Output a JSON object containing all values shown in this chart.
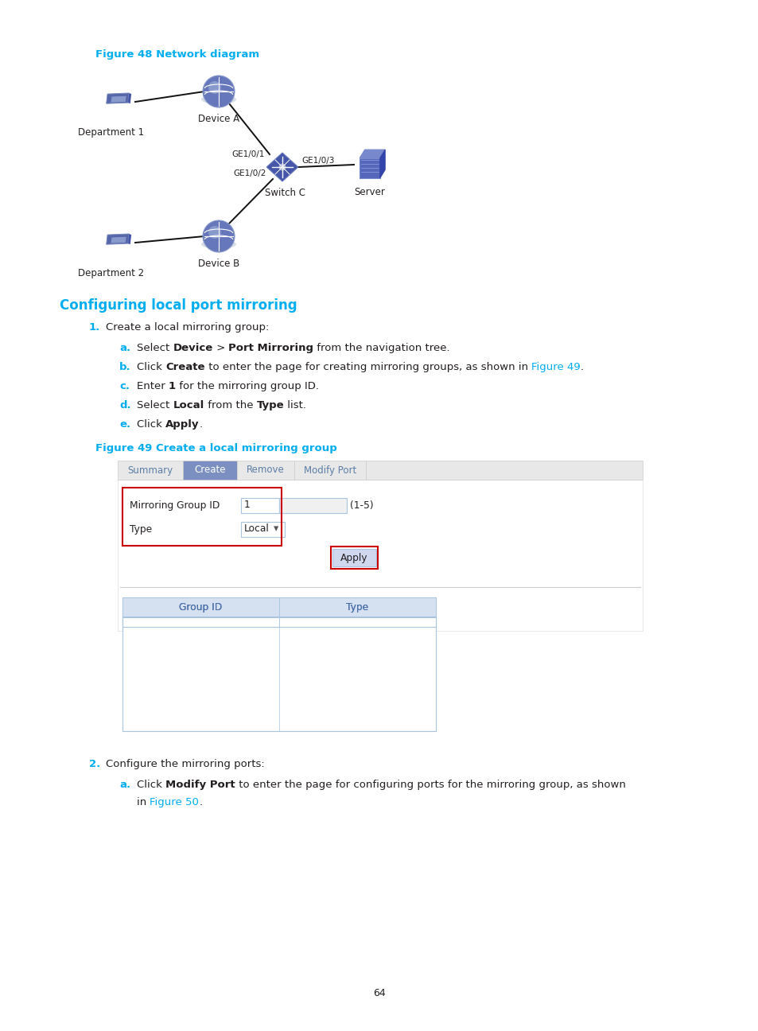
{
  "bg_color": "#ffffff",
  "figure_caption_color": "#00AEEF",
  "heading_color": "#00AEEF",
  "link_color": "#00AEEF",
  "body_text_color": "#231F20",
  "tab_active_color": "#7B8FC0",
  "tab_inactive_color": "#E8E8E8",
  "tab_text_active": "#ffffff",
  "tab_text_inactive": "#5B7EA6",
  "table_header_bg": "#D5E0F0",
  "table_border_color": "#A8C4E0",
  "input_border_color": "#A8C4E0",
  "red_border_color": "#CC0000",
  "apply_btn_bg": "#D0D8F0",
  "figure48_caption": "Figure 48 Network diagram",
  "figure49_caption": "Figure 49 Create a local mirroring group",
  "section_heading": "Configuring local port mirroring",
  "step1_text": "Create a local mirroring group:",
  "step2_text": "Configure the mirroring ports:",
  "tabs": [
    "Summary",
    "Create",
    "Remove",
    "Modify Port"
  ],
  "active_tab": 1,
  "field1_label": "Mirroring Group ID",
  "field1_value": "1",
  "field1_suffix": "(1-5)",
  "field2_label": "Type",
  "field2_value": "Local",
  "apply_btn_text": "Apply",
  "table_headers": [
    "Group ID",
    "Type"
  ],
  "page_number": "64"
}
